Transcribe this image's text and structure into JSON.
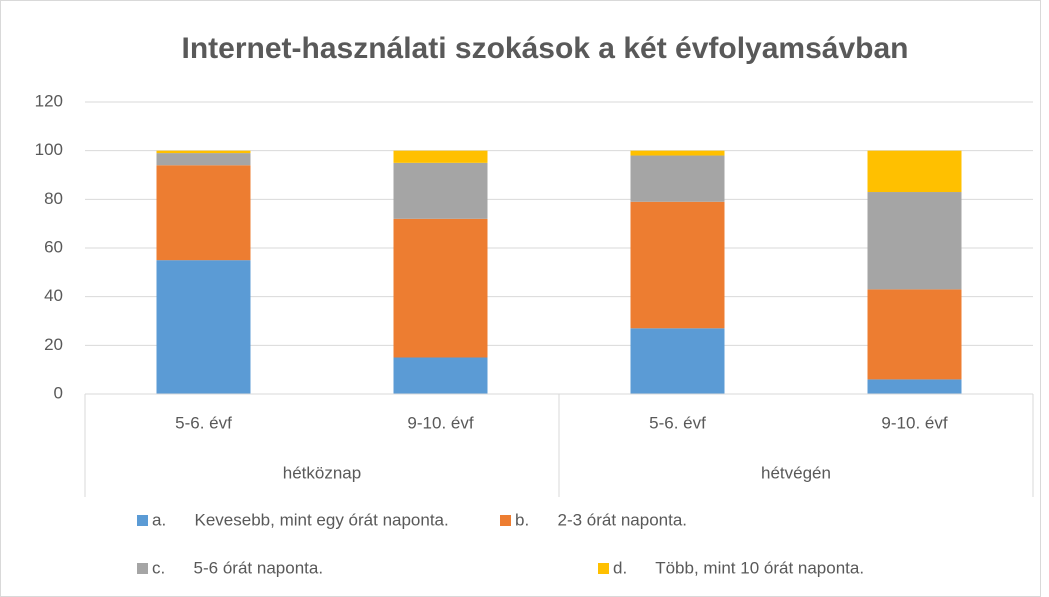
{
  "chart_data": {
    "type": "stacked_bar",
    "title": "Internet-használati szokások a két évfolyamsávban",
    "categories": [
      "5-6. évf",
      "9-10. évf",
      "5-6. évf",
      "9-10. évf"
    ],
    "groups": [
      "hétköznap",
      "hétvégén"
    ],
    "series": [
      {
        "name": "a.      Kevesebb, mint egy órát naponta.",
        "color": "#5b9bd5",
        "values": [
          55,
          15,
          27,
          6
        ]
      },
      {
        "name": "b.      2-3 órát naponta.",
        "color": "#ed7d31",
        "values": [
          39,
          57,
          52,
          37
        ]
      },
      {
        "name": "c.      5-6 órát naponta.",
        "color": "#a5a5a5",
        "values": [
          5,
          23,
          19,
          40
        ]
      },
      {
        "name": "d.      Több, mint 10 órát naponta.",
        "color": "#ffc000",
        "values": [
          1,
          5,
          2,
          17
        ]
      }
    ],
    "ylim": [
      0,
      120
    ],
    "yticks": [
      0,
      20,
      40,
      60,
      80,
      100,
      120
    ],
    "grid": true,
    "legend": "bottom"
  }
}
